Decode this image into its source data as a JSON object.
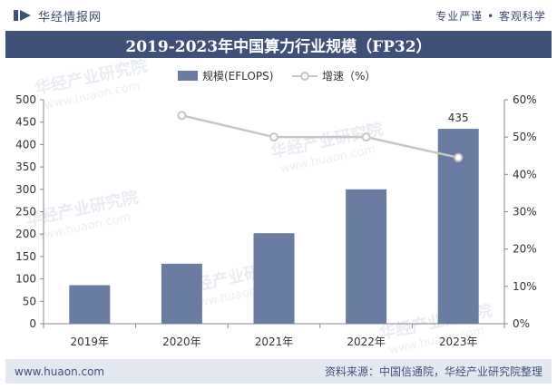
{
  "header": {
    "brand": "华经情报网",
    "slogan": "专业严谨 • 客观科学"
  },
  "title": "2019-2023年中国算力行业规模（FP32）",
  "footer": {
    "url": "www.huaon.com",
    "source": "资料来源：中国信通院，华经产业研究院整理"
  },
  "watermark": "华经产业研究院",
  "watermark_url": "www.huaon.com",
  "colors": {
    "bar": "#6b7ca3",
    "line": "#c6c6c6",
    "title_bg": "#3f5079",
    "footer_bg": "#e4e8f1"
  },
  "chart_data": {
    "type": "bar",
    "categories": [
      "2019年",
      "2020年",
      "2021年",
      "2022年",
      "2023年"
    ],
    "series": [
      {
        "name": "规模(EFLOPS)",
        "type": "bar",
        "axis": "left",
        "values": [
          86,
          134,
          202,
          300,
          435
        ]
      },
      {
        "name": "增速（%）",
        "type": "line",
        "axis": "right",
        "values": [
          null,
          55.8,
          50.0,
          50.0,
          44.5
        ]
      }
    ],
    "y_left": {
      "min": 0,
      "max": 500,
      "ticks": [
        0,
        50,
        100,
        150,
        200,
        250,
        300,
        350,
        400,
        450,
        500
      ]
    },
    "y_right": {
      "min": 0,
      "max": 60,
      "ticks": [
        "0%",
        "10%",
        "20%",
        "30%",
        "40%",
        "50%",
        "60%"
      ]
    },
    "data_labels": [
      {
        "category": "2023年",
        "text": "435"
      }
    ],
    "legend": "top-center",
    "grid": false
  }
}
